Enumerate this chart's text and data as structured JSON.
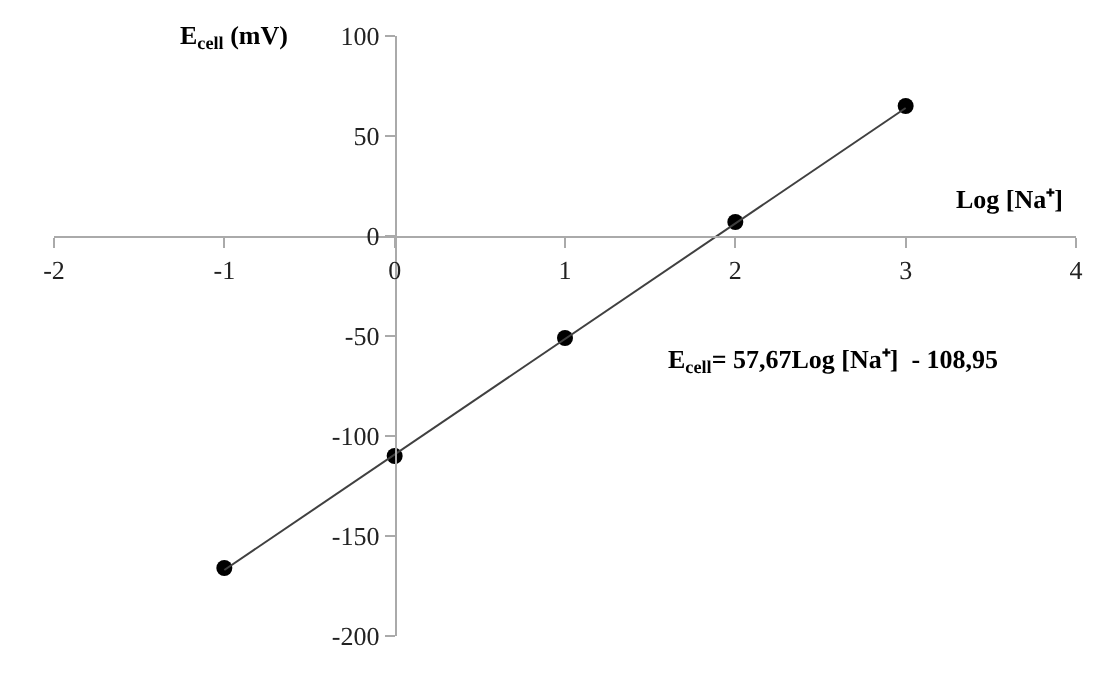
{
  "chart_data": {
    "type": "scatter",
    "xlabel": "Log [Na⁺]",
    "ylabel": "E$_{cell}$ (mV)",
    "xlim": [
      -2,
      4
    ],
    "xticks": [
      -2,
      -1,
      0,
      1,
      2,
      3,
      4
    ],
    "ylim": [
      -200,
      100
    ],
    "yticks": [
      -200,
      -150,
      -100,
      -50,
      0,
      50,
      100
    ],
    "marker": "circle",
    "series": [
      {
        "color": "#000000",
        "x": [
          -1,
          0,
          1,
          2,
          3
        ],
        "values": [
          -166,
          -110,
          -51,
          7,
          65
        ]
      },
      {
        "type": "line",
        "color": "#404040",
        "line_style": "solid",
        "marker": "none",
        "x": [
          -1,
          3
        ],
        "values": [
          -167,
          64
        ]
      }
    ],
    "annotations": [
      "E$_{cell}$= 57,67Log [Na⁺]  - 108,95"
    ]
  }
}
